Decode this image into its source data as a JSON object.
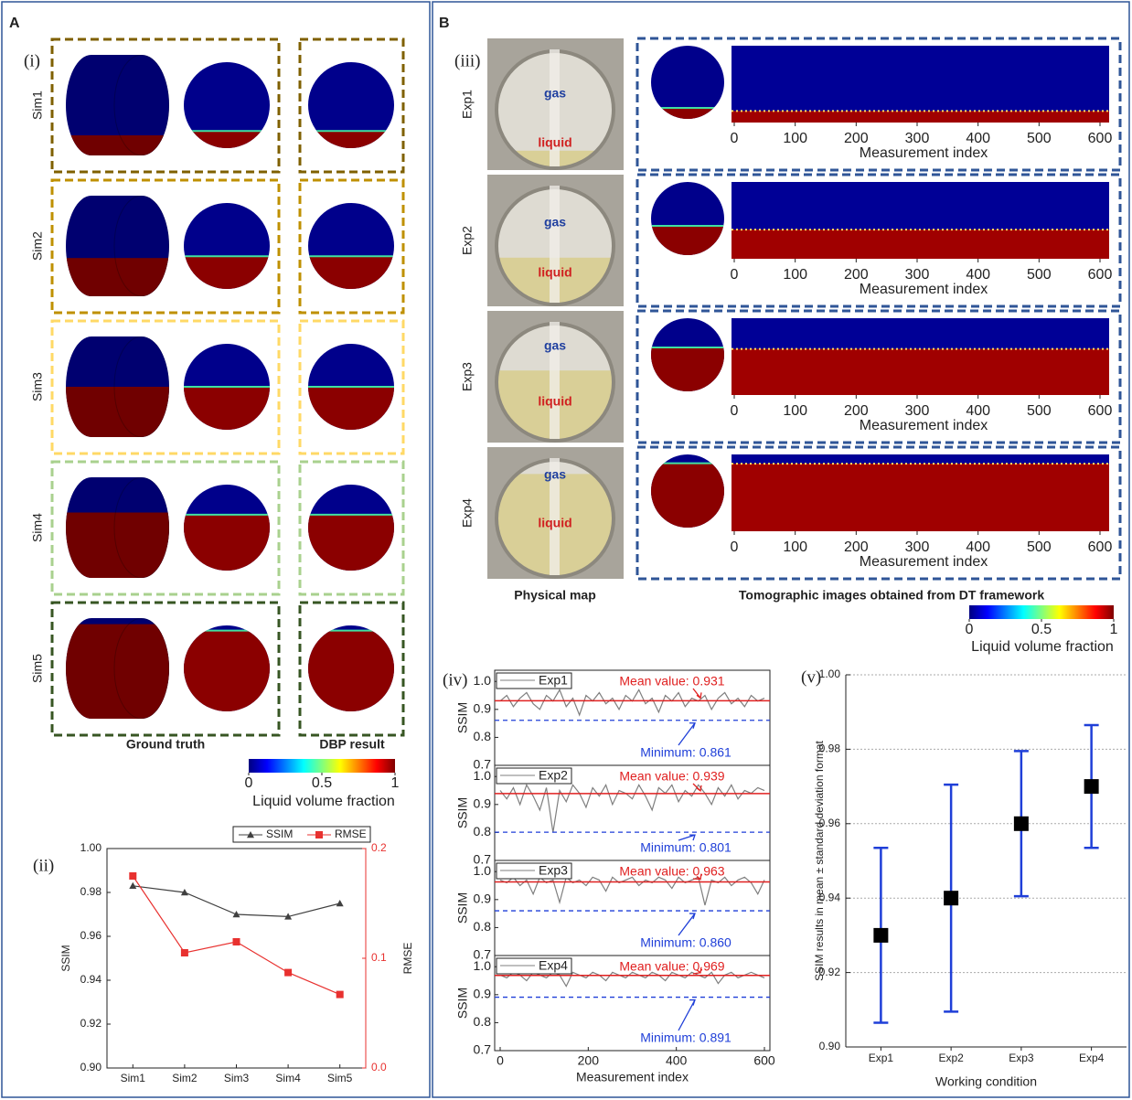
{
  "panel_a": {
    "label": "A",
    "sublabel": "(i)",
    "rows": [
      "Sim1",
      "Sim2",
      "Sim3",
      "Sim4",
      "Sim5"
    ],
    "columns": [
      "Ground truth",
      "DBP result"
    ],
    "colorbar": {
      "lim": [
        0,
        1
      ],
      "ticks": [
        0,
        0.5,
        1
      ],
      "label": "Liquid volume fraction"
    }
  },
  "panel_b": {
    "label": "B",
    "sublabel": "(iii)",
    "rows": [
      {
        "name": "Exp1",
        "gas": "gas",
        "liquid": "liquid"
      },
      {
        "name": "Exp2",
        "gas": "gas",
        "liquid": "liquid"
      },
      {
        "name": "Exp3",
        "gas": "gas",
        "liquid": "liquid"
      },
      {
        "name": "Exp4",
        "gas": "gas",
        "liquid": "liquid"
      }
    ],
    "columns": [
      "Physical map",
      "Tomographic images obtained from DT framework"
    ],
    "heatmap": {
      "xlim": [
        0,
        600
      ],
      "xticks": [
        0,
        100,
        200,
        300,
        400,
        500,
        600
      ],
      "xlabel": "Measurement index"
    },
    "colorbar": {
      "lim": [
        0,
        1
      ],
      "ticks": [
        0,
        0.5,
        1
      ],
      "label": "Liquid volume fraction"
    }
  },
  "chart_data": [
    {
      "type": "line",
      "label": "(ii)",
      "categories": [
        "Sim1",
        "Sim2",
        "Sim3",
        "Sim4",
        "Sim5"
      ],
      "ylabel": "SSIM",
      "y2label": "RMSE",
      "ylim": [
        0.9,
        1.0
      ],
      "yticks": [
        {
          "value": 0.9,
          "label": "0.90"
        },
        0.92,
        0.94,
        0.96,
        0.98,
        {
          "value": 1.0,
          "label": "1.00"
        }
      ],
      "y2lim": [
        0,
        0.2
      ],
      "y2ticks": [
        {
          "value": 0,
          "label": "0.0"
        },
        0.1,
        0.2
      ],
      "legend": "top-right",
      "series": [
        {
          "name": "SSIM",
          "color": "#404040",
          "marker": "triangle",
          "values": [
            0.983,
            0.98,
            0.97,
            0.969,
            0.975
          ]
        },
        {
          "name": "RMSE",
          "color": "#e8312f",
          "marker": "square",
          "axis": "y2",
          "values": [
            0.175,
            0.105,
            0.115,
            0.087,
            0.067
          ]
        }
      ]
    },
    {
      "type": "line",
      "label": "(iv)",
      "xlabel": "Measurement index",
      "ylabel": "SSIM",
      "xlim": [
        0,
        600
      ],
      "xticks": [
        0,
        200,
        400,
        600
      ],
      "ylim": [
        0.7,
        1.04
      ],
      "yticks": [
        0.7,
        0.8,
        0.9,
        {
          "value": 1.0,
          "label": "1.0"
        }
      ],
      "x": [
        0,
        15,
        30,
        45,
        60,
        75,
        90,
        105,
        120,
        135,
        150,
        165,
        180,
        195,
        210,
        225,
        240,
        255,
        270,
        285,
        300,
        315,
        330,
        345,
        360,
        375,
        390,
        405,
        420,
        435,
        450,
        465,
        480,
        495,
        510,
        525,
        540,
        555,
        570,
        585,
        600
      ],
      "panels": [
        {
          "series": [
            {
              "name": "Exp1",
              "color": "#7f7f7f",
              "values": [
                0.93,
                0.95,
                0.91,
                0.94,
                0.96,
                0.92,
                0.9,
                0.95,
                0.93,
                0.97,
                0.91,
                0.94,
                0.88,
                0.95,
                0.93,
                0.96,
                0.92,
                0.94,
                0.9,
                0.95,
                0.93,
                0.97,
                0.92,
                0.94,
                0.89,
                0.95,
                0.93,
                0.96,
                0.91,
                0.94,
                0.93,
                0.95,
                0.9,
                0.94,
                0.96,
                0.92,
                0.94,
                0.91,
                0.95,
                0.93,
                0.94
              ]
            }
          ],
          "mean": {
            "value": 0.931,
            "label": "Mean value: 0.931"
          },
          "minimum": {
            "value": 0.861,
            "label": "Minimum: 0.861"
          }
        },
        {
          "series": [
            {
              "name": "Exp2",
              "color": "#7f7f7f",
              "values": [
                0.95,
                0.92,
                0.96,
                0.9,
                0.97,
                0.93,
                0.88,
                0.96,
                0.8,
                0.95,
                0.91,
                0.97,
                0.94,
                0.89,
                0.96,
                0.93,
                0.97,
                0.9,
                0.95,
                0.94,
                0.92,
                0.97,
                0.93,
                0.88,
                0.96,
                0.94,
                0.97,
                0.91,
                0.95,
                0.93,
                0.97,
                0.94,
                0.9,
                0.96,
                0.93,
                0.97,
                0.92,
                0.95,
                0.94,
                0.96,
                0.95
              ]
            }
          ],
          "mean": {
            "value": 0.939,
            "label": "Mean value: 0.939"
          },
          "minimum": {
            "value": 0.801,
            "label": "Minimum: 0.801"
          }
        },
        {
          "series": [
            {
              "name": "Exp3",
              "color": "#7f7f7f",
              "values": [
                0.97,
                0.96,
                0.98,
                0.95,
                0.97,
                0.92,
                0.98,
                0.96,
                0.97,
                0.89,
                0.98,
                0.96,
                0.97,
                0.95,
                0.98,
                0.97,
                0.93,
                0.98,
                0.96,
                0.97,
                0.98,
                0.95,
                0.97,
                0.96,
                0.98,
                0.97,
                0.94,
                0.98,
                0.96,
                0.97,
                0.98,
                0.88,
                0.97,
                0.96,
                0.98,
                0.95,
                0.97,
                0.98,
                0.96,
                0.92,
                0.97
              ]
            }
          ],
          "mean": {
            "value": 0.963,
            "label": "Mean value: 0.963"
          },
          "minimum": {
            "value": 0.86,
            "label": "Minimum: 0.860"
          }
        },
        {
          "series": [
            {
              "name": "Exp4",
              "color": "#7f7f7f",
              "values": [
                0.97,
                0.96,
                0.98,
                0.97,
                0.95,
                0.98,
                0.97,
                0.96,
                0.98,
                0.97,
                0.93,
                0.98,
                0.97,
                0.96,
                0.98,
                0.97,
                0.95,
                0.98,
                0.97,
                0.96,
                0.98,
                0.97,
                0.96,
                0.98,
                0.97,
                0.95,
                0.98,
                0.97,
                0.96,
                0.98,
                0.97,
                0.96,
                0.98,
                0.94,
                0.97,
                0.98,
                0.96,
                0.97,
                0.98,
                0.97,
                0.96
              ]
            }
          ],
          "mean": {
            "value": 0.969,
            "label": "Mean value: 0.969"
          },
          "minimum": {
            "value": 0.891,
            "label": "Minimum: 0.891"
          }
        }
      ]
    },
    {
      "type": "errorbar",
      "label": "(v)",
      "categories": [
        "Exp1",
        "Exp2",
        "Exp3",
        "Exp4"
      ],
      "xlabel": "Working condition",
      "ylabel": "SSIM results in mean ± standard deviation format",
      "ylim": [
        0.9,
        1.0
      ],
      "yticks": [
        {
          "value": 0.9,
          "label": "0.90"
        },
        0.92,
        0.94,
        0.96,
        0.98,
        {
          "value": 1.0,
          "label": "1.00"
        }
      ],
      "grid": true,
      "color": "#000000",
      "error_color": "#1f3fd8",
      "values": [
        0.93,
        0.94,
        0.96,
        0.97
      ],
      "errors": [
        0.0235,
        0.0305,
        0.0195,
        0.0165
      ]
    }
  ]
}
